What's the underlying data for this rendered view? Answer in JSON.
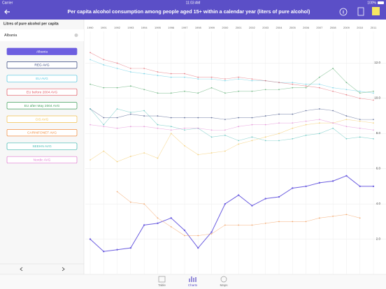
{
  "status_bar": {
    "carrier": "Carrier",
    "time": "11:03 AM",
    "battery": "100%"
  },
  "header": {
    "title": "Per capita alcohol consumption among people aged 15+ within a calendar year (liters of pure alcohol)"
  },
  "sidebar": {
    "heading": "Litres of pure alcohol per capita",
    "selected": "Albania"
  },
  "tabs": [
    "Table",
    "Charts",
    "Maps"
  ],
  "chart_data": {
    "type": "line",
    "x": [
      1990,
      1991,
      1992,
      1993,
      1994,
      1995,
      1996,
      1997,
      1998,
      1999,
      2000,
      2001,
      2002,
      2003,
      2004,
      2005,
      2006,
      2007,
      2008,
      2009,
      2010,
      2011
    ],
    "xlim": [
      1990,
      2011
    ],
    "ylim": [
      0,
      14
    ],
    "yticks": [
      {
        "value": 2,
        "label": "2.0"
      },
      {
        "value": 4,
        "label": "4.0"
      },
      {
        "value": 6,
        "label": "6.0"
      },
      {
        "value": 8,
        "label": "8.0"
      },
      {
        "value": 10,
        "label": "10.0"
      },
      {
        "value": 12,
        "label": "12.0"
      }
    ],
    "grid": true,
    "series": [
      {
        "name": "Albania",
        "color": "#6d5fe0",
        "values": [
          2.0,
          1.3,
          1.4,
          1.5,
          2.8,
          2.9,
          3.2,
          2.5,
          1.5,
          2.4,
          4.0,
          4.5,
          3.9,
          4.3,
          4.4,
          4.9,
          5.0,
          5.2,
          5.3,
          5.6,
          5.0,
          5.0
        ]
      },
      {
        "name": "REG AVG",
        "color": "#2e3f7a",
        "values": [
          9.4,
          8.9,
          8.9,
          9.1,
          9.0,
          9.0,
          8.9,
          8.9,
          8.9,
          8.9,
          8.8,
          8.9,
          8.9,
          9.0,
          9.1,
          9.1,
          9.3,
          9.4,
          9.3,
          9.0,
          8.8,
          8.8
        ]
      },
      {
        "name": "EU AVG",
        "color": "#4cc6e0",
        "values": [
          12.2,
          11.9,
          11.7,
          11.5,
          11.4,
          11.3,
          11.2,
          11.2,
          11.1,
          11.1,
          11.0,
          11.1,
          11.0,
          11.0,
          10.9,
          10.9,
          10.8,
          10.8,
          10.6,
          10.5,
          10.4,
          10.3
        ]
      },
      {
        "name": "EU before 2004 AVG",
        "color": "#e0535e",
        "values": [
          12.6,
          12.2,
          12.0,
          11.7,
          11.7,
          11.5,
          11.4,
          11.4,
          11.2,
          11.2,
          11.1,
          11.2,
          11.1,
          11.0,
          10.9,
          10.8,
          10.7,
          10.6,
          10.4,
          10.2,
          10.0,
          9.9
        ]
      },
      {
        "name": "EU after May 2004 AVG",
        "color": "#3f9e5a",
        "values": [
          10.8,
          10.6,
          10.6,
          10.7,
          10.5,
          10.3,
          10.3,
          10.4,
          10.3,
          10.6,
          10.3,
          10.4,
          10.4,
          10.5,
          10.5,
          10.6,
          10.6,
          11.2,
          11.7,
          10.9,
          10.3,
          10.4
        ]
      },
      {
        "name": "CIS AVG",
        "color": "#f2c14e",
        "values": [
          6.5,
          7.0,
          6.4,
          6.7,
          6.9,
          6.6,
          8.0,
          7.3,
          6.8,
          6.9,
          7.0,
          7.4,
          7.6,
          7.8,
          8.0,
          8.3,
          8.5,
          8.6,
          8.6,
          8.8,
          8.7,
          8.6
        ]
      },
      {
        "name": "CARINFONET AVG",
        "color": "#f08a3c",
        "values": [
          null,
          null,
          4.7,
          4.1,
          4.0,
          3.2,
          2.7,
          2.2,
          2.2,
          2.3,
          2.8,
          2.8,
          2.8,
          2.9,
          3.0,
          3.0,
          3.0,
          3.2,
          3.3,
          3.4,
          3.2,
          null
        ]
      },
      {
        "name": "SEEHN AVG",
        "color": "#3fb8b0",
        "values": [
          9.4,
          8.5,
          9.4,
          9.2,
          9.3,
          8.5,
          8.4,
          8.2,
          8.3,
          7.8,
          7.9,
          7.6,
          7.8,
          7.6,
          7.6,
          7.7,
          7.9,
          8.0,
          8.3,
          7.7,
          7.8,
          7.7
        ]
      },
      {
        "name": "Nordic AVG",
        "color": "#e07ad0",
        "values": [
          8.5,
          8.4,
          8.3,
          8.4,
          8.4,
          8.3,
          8.2,
          8.3,
          8.3,
          8.2,
          8.2,
          8.4,
          8.5,
          8.5,
          8.6,
          8.6,
          8.7,
          8.8,
          8.6,
          8.4,
          8.3,
          8.2
        ]
      }
    ]
  }
}
